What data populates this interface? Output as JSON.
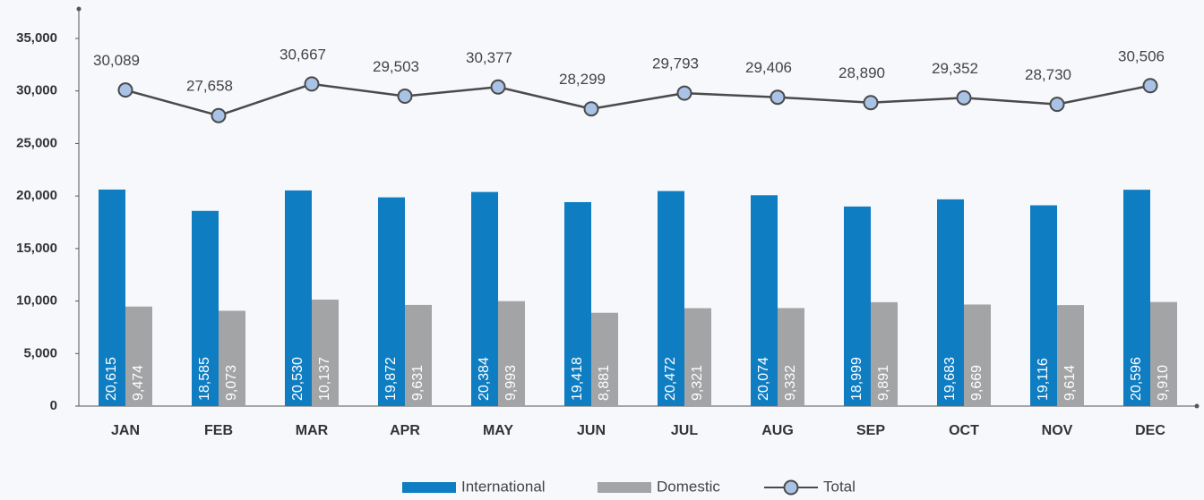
{
  "chart_data": {
    "type": "bar_line",
    "categories": [
      "JAN",
      "FEB",
      "MAR",
      "APR",
      "MAY",
      "JUN",
      "JUL",
      "AUG",
      "SEP",
      "OCT",
      "NOV",
      "DEC"
    ],
    "series": [
      {
        "name": "International",
        "type": "bar",
        "color": "#0f7dc2",
        "values": [
          20615,
          18585,
          20530,
          19872,
          20384,
          19418,
          20472,
          20074,
          18999,
          19683,
          19116,
          20596
        ],
        "value_labels": [
          "20,615",
          "18,585",
          "20,530",
          "19,872",
          "20,384",
          "19,418",
          "20,472",
          "20,074",
          "18,999",
          "19,683",
          "19,116",
          "20,596"
        ]
      },
      {
        "name": "Domestic",
        "type": "bar",
        "color": "#a3a4a6",
        "values": [
          9474,
          9073,
          10137,
          9631,
          9993,
          8881,
          9321,
          9332,
          9891,
          9669,
          9614,
          9910
        ],
        "value_labels": [
          "9,474",
          "9,073",
          "10,137",
          "9,631",
          "9,993",
          "8,881",
          "9,321",
          "9,332",
          "9,891",
          "9,669",
          "9,614",
          "9,910"
        ]
      },
      {
        "name": "Total",
        "type": "line",
        "color": "#4a4a4a",
        "marker_color": "#a9c3e6",
        "values": [
          30089,
          27658,
          30667,
          29503,
          30377,
          28299,
          29793,
          29406,
          28890,
          29352,
          28730,
          30506
        ],
        "value_labels": [
          "30,089",
          "27,658",
          "30,667",
          "29,503",
          "30,377",
          "28,299",
          "29,793",
          "29,406",
          "28,890",
          "29,352",
          "28,730",
          "30,506"
        ]
      }
    ],
    "ylim": [
      0,
      35000
    ],
    "yticks": [
      0,
      {
        "value": 5000,
        "label": "5,000"
      },
      {
        "value": 10000,
        "label": "10,000"
      },
      {
        "value": 15000,
        "label": "15,000"
      },
      {
        "value": 20000,
        "label": "20,000"
      },
      {
        "value": 25000,
        "label": "25,000"
      },
      {
        "value": 30000,
        "label": "30,000"
      },
      {
        "value": 35000,
        "label": "35,000"
      }
    ],
    "grid": false,
    "legend": "bottom"
  }
}
